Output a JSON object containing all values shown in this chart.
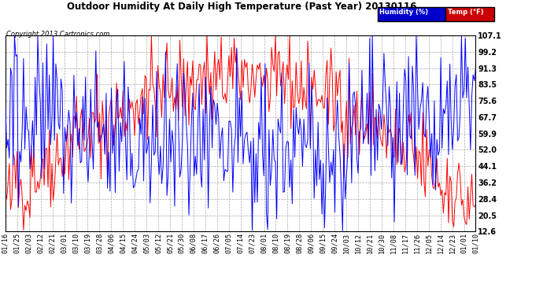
{
  "title": "Outdoor Humidity At Daily High Temperature (Past Year) 20130116",
  "copyright": "Copyright 2013 Cartronics.com",
  "legend_humidity": "Humidity (%)",
  "legend_temp": "Temp (°F)",
  "legend_humidity_bg": "#0000cc",
  "legend_temp_bg": "#cc0000",
  "ylim": [
    12.6,
    107.1
  ],
  "yticks": [
    12.6,
    20.5,
    28.4,
    36.2,
    44.1,
    52.0,
    59.9,
    67.7,
    75.6,
    83.5,
    91.3,
    99.2,
    107.1
  ],
  "background": "#ffffff",
  "grid_color": "#aaaaaa",
  "humidity_color": "#0000ff",
  "temp_color": "#ff0000",
  "xtick_labels": [
    "01/16",
    "01/25",
    "02/03",
    "02/12",
    "02/21",
    "03/01",
    "03/10",
    "03/19",
    "03/28",
    "04/06",
    "04/15",
    "04/24",
    "05/03",
    "05/12",
    "05/21",
    "05/30",
    "06/08",
    "06/17",
    "06/26",
    "07/05",
    "07/14",
    "07/23",
    "08/01",
    "08/10",
    "08/19",
    "08/28",
    "09/06",
    "09/15",
    "09/24",
    "10/03",
    "10/12",
    "10/21",
    "10/30",
    "11/08",
    "11/17",
    "11/26",
    "12/05",
    "12/14",
    "12/23",
    "01/01",
    "01/10"
  ],
  "num_points": 365,
  "seed": 42
}
